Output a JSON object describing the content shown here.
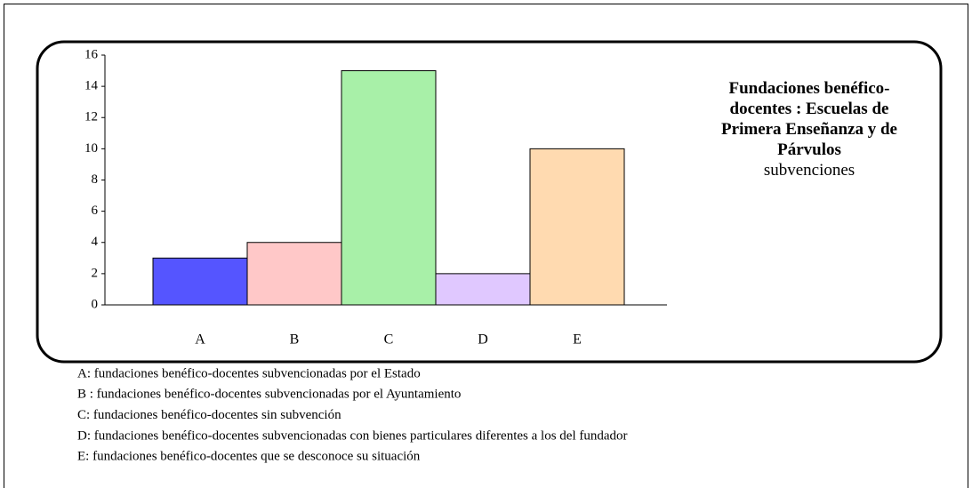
{
  "chart_data": {
    "type": "bar",
    "title": "Fundaciones benéfico-docentes : Escuelas de Primera Enseñanza y de Párvulos",
    "subtitle": "subvenciones",
    "categories": [
      "A",
      "B",
      "C",
      "D",
      "E"
    ],
    "values": [
      3,
      4,
      15,
      2,
      10
    ],
    "colors": [
      "#5555ff",
      "#ffc8c8",
      "#a8f0a8",
      "#e0c8ff",
      "#ffdab0"
    ],
    "ylim": [
      0,
      16
    ],
    "yticks": [
      0,
      2,
      4,
      6,
      8,
      10,
      12,
      14,
      16
    ],
    "notes": [
      "A: fundaciones benéfico-docentes subvencionadas por el Estado",
      "B : fundaciones benéfico-docentes subvencionadas por el Ayuntamiento",
      "C: fundaciones benéfico-docentes sin subvención",
      "D: fundaciones benéfico-docentes subvencionadas con bienes particulares diferentes a los del fundador",
      "E: fundaciones benéfico-docentes que se desconoce su situación"
    ]
  }
}
